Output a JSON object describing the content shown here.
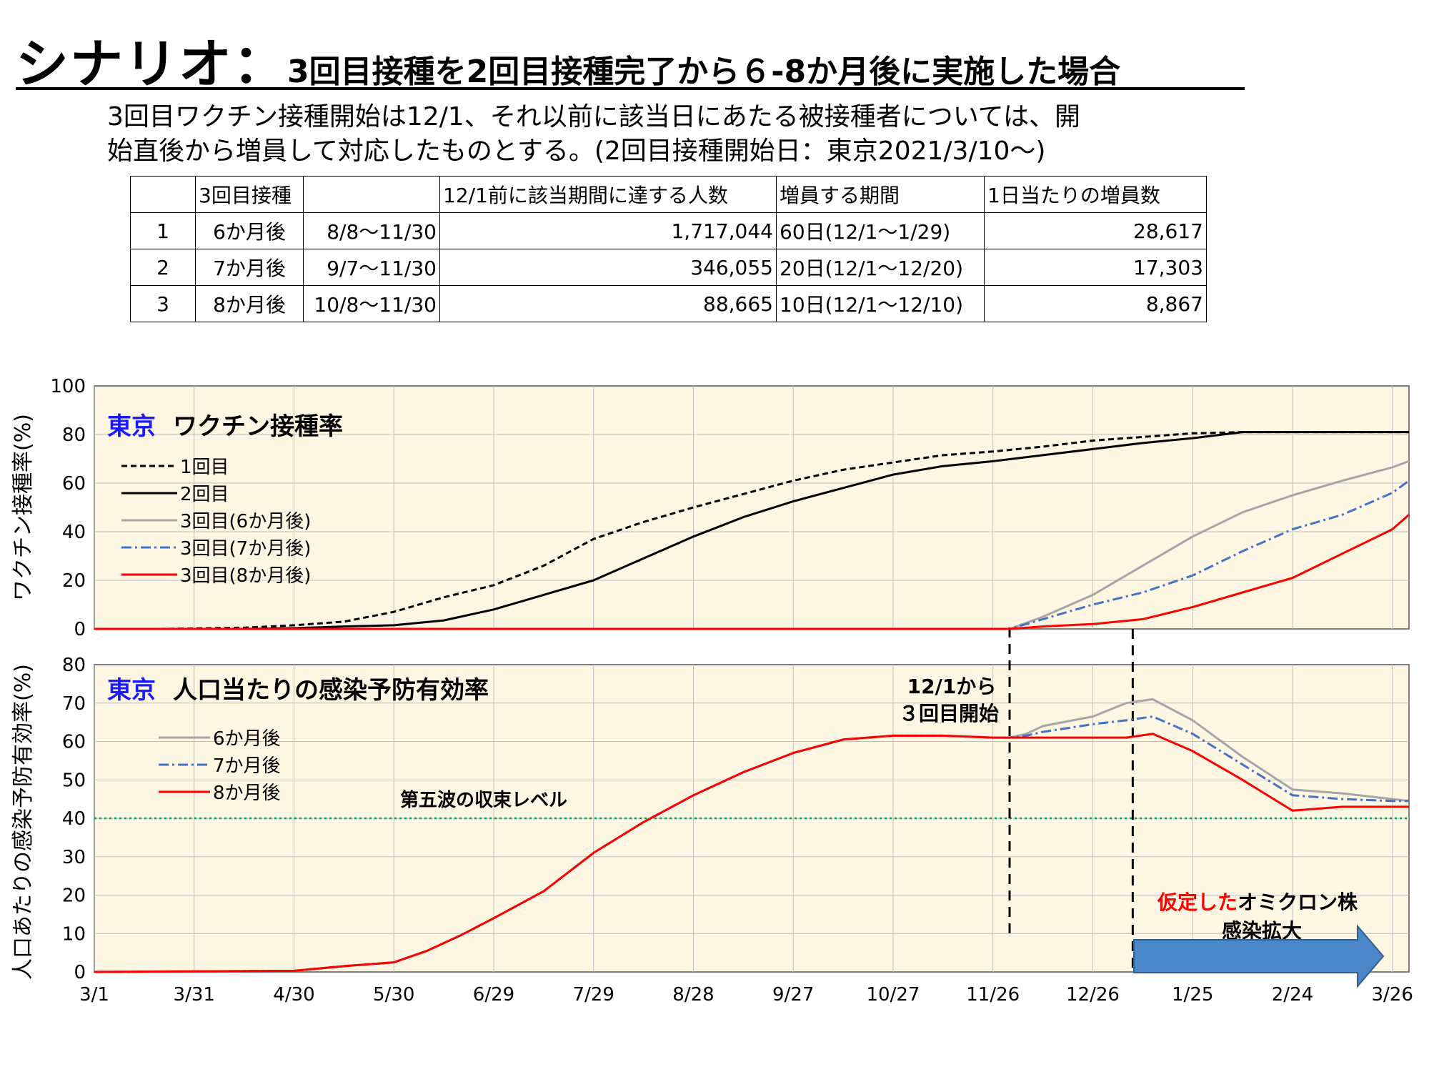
{
  "title": {
    "main": "シナリオ：",
    "sub": "3回目接種を2回目接種完了から６-8か月後に実施した場合"
  },
  "description": {
    "line1": "3回目ワクチン接種開始は12/1、それ以前に該当日にあたる被接種者については、開",
    "line2": "始直後から増員して対応したものとする。(2回目接種開始日：東京2021/3/10〜)"
  },
  "table": {
    "headers": [
      "",
      "3回目接種",
      "",
      "12/1前に該当期間に達する人数",
      "増員する期間",
      "1日当たりの増員数"
    ],
    "rows": [
      [
        "1",
        "6か月後",
        "8/8〜11/30",
        "1,717,044",
        "60日(12/1〜1/29)",
        "28,617"
      ],
      [
        "2",
        "7か月後",
        "9/7〜11/30",
        "346,055",
        "20日(12/1〜12/20)",
        "17,303"
      ],
      [
        "3",
        "8か月後",
        "10/8〜11/30",
        "88,665",
        "10日(12/1〜12/10)",
        "8,867"
      ]
    ]
  },
  "colors": {
    "panel_bg": "#fdf6e3",
    "black": "#000000",
    "gray": "#a6a6a6",
    "blue": "#4472c4",
    "red": "#ff0000",
    "green": "#00a050",
    "title_blue": "#1a1aff",
    "arrow": "#4a86c8"
  },
  "chart_data": [
    {
      "type": "line",
      "title_prefix": "東京",
      "title": "ワクチン接種率",
      "ylabel": "ワクチン接種率(%)",
      "ylim": [
        0,
        100
      ],
      "yticks": [
        0,
        20,
        40,
        60,
        80,
        100
      ],
      "legend": "top-left",
      "series": [
        {
          "name": "1回目",
          "color": "black",
          "dash": "dashed",
          "x": [
            0,
            20,
            45,
            60,
            75,
            90,
            105,
            120,
            135,
            150,
            165,
            180,
            195,
            210,
            225,
            240,
            255,
            270,
            285,
            300,
            330,
            345,
            360,
            395
          ],
          "y": [
            0,
            0,
            0.5,
            1.5,
            3,
            7,
            13,
            18,
            26,
            37,
            44,
            50,
            55.5,
            61,
            65.5,
            68.5,
            71.5,
            73,
            75,
            77.5,
            80.5,
            81,
            81,
            81
          ]
        },
        {
          "name": "2回目",
          "color": "black",
          "dash": "solid",
          "x": [
            0,
            45,
            60,
            75,
            90,
            105,
            120,
            135,
            150,
            165,
            180,
            195,
            210,
            225,
            240,
            255,
            270,
            285,
            300,
            315,
            330,
            345,
            395
          ],
          "y": [
            0,
            0,
            0.3,
            1,
            1.5,
            3.5,
            8,
            14,
            20,
            29,
            38,
            46,
            52.5,
            58,
            63.5,
            67,
            69,
            71.5,
            74,
            76.5,
            78.5,
            81,
            81
          ]
        },
        {
          "name": "3回目(6か月後)",
          "color": "gray",
          "dash": "solid",
          "x": [
            0,
            275,
            285,
            300,
            315,
            330,
            345,
            360,
            375,
            390,
            395
          ],
          "y": [
            0,
            0,
            5,
            14,
            26,
            38,
            48,
            55,
            61,
            66.5,
            69
          ]
        },
        {
          "name": "3回目(7か月後)",
          "color": "blue",
          "dash": "dashdot",
          "x": [
            0,
            275,
            285,
            300,
            315,
            330,
            345,
            360,
            375,
            390,
            395
          ],
          "y": [
            0,
            0,
            4,
            10,
            15,
            22,
            32,
            41,
            47,
            56,
            61
          ]
        },
        {
          "name": "3回目(8か月後)",
          "color": "red",
          "dash": "solid",
          "x": [
            0,
            275,
            285,
            300,
            315,
            330,
            345,
            360,
            375,
            390,
            395
          ],
          "y": [
            0,
            0,
            1,
            2,
            4,
            9,
            15,
            21,
            31,
            41,
            47
          ]
        }
      ]
    },
    {
      "type": "line",
      "title_prefix": "東京",
      "title": "人口当たりの感染予防有効率",
      "ylabel": "人口あたりの感染予防有効率(%)",
      "ylim": [
        0,
        80
      ],
      "yticks": [
        0,
        10,
        20,
        30,
        40,
        50,
        60,
        70,
        80
      ],
      "xlabels": [
        "3/1",
        "3/31",
        "4/30",
        "5/30",
        "6/29",
        "7/29",
        "8/28",
        "9/27",
        "10/27",
        "11/26",
        "12/26",
        "1/25",
        "2/24",
        "3/26"
      ],
      "xticks": [
        0,
        30,
        60,
        90,
        120,
        150,
        180,
        210,
        240,
        270,
        300,
        330,
        360,
        390
      ],
      "legend": "top-left",
      "series": [
        {
          "name": "6か月後",
          "color": "gray",
          "dash": "solid",
          "x": [
            0,
            60,
            75,
            90,
            100,
            110,
            120,
            135,
            150,
            165,
            180,
            195,
            210,
            225,
            240,
            255,
            270,
            275,
            280,
            285,
            300,
            310,
            318,
            330,
            345,
            360,
            375,
            390,
            395
          ],
          "y": [
            0,
            0.3,
            1.5,
            2.5,
            5.5,
            9.5,
            14,
            21,
            31,
            39,
            46,
            52,
            57,
            60.5,
            61.5,
            61.5,
            61,
            61,
            62,
            64,
            66.5,
            70,
            71,
            65.5,
            56,
            47.5,
            46.5,
            45,
            44.5
          ]
        },
        {
          "name": "7か月後",
          "color": "blue",
          "dash": "dashdot",
          "x": [
            0,
            60,
            75,
            90,
            100,
            110,
            120,
            135,
            150,
            165,
            180,
            195,
            210,
            225,
            240,
            255,
            270,
            275,
            280,
            285,
            300,
            310,
            318,
            330,
            345,
            360,
            375,
            390,
            395
          ],
          "y": [
            0,
            0.3,
            1.5,
            2.5,
            5.5,
            9.5,
            14,
            21,
            31,
            39,
            46,
            52,
            57,
            60.5,
            61.5,
            61.5,
            61,
            61,
            61.5,
            62.5,
            64.5,
            65.5,
            66.5,
            62,
            54,
            46,
            45,
            44.5,
            44.5
          ]
        },
        {
          "name": "8か月後",
          "color": "red",
          "dash": "solid",
          "x": [
            0,
            60,
            75,
            90,
            100,
            110,
            120,
            135,
            150,
            165,
            180,
            195,
            210,
            225,
            240,
            255,
            270,
            275,
            280,
            285,
            300,
            310,
            318,
            330,
            345,
            360,
            375,
            390,
            395
          ],
          "y": [
            0,
            0.3,
            1.5,
            2.5,
            5.5,
            9.5,
            14,
            21,
            31,
            39,
            46,
            52,
            57,
            60.5,
            61.5,
            61.5,
            61,
            61,
            61,
            61,
            61,
            61,
            62,
            57.5,
            50,
            42,
            43,
            43,
            43
          ]
        }
      ],
      "reference_line": {
        "y": 40,
        "label": "第五波の収束レベル",
        "color": "green"
      },
      "annotations": {
        "start_line_x": 275,
        "start_label_1": "12/1から",
        "start_label_2": "３回目開始",
        "omicron_line_x": 312,
        "omicron_red": "仮定した",
        "omicron_rest": "オミクロン株",
        "omicron_line2": "感染拡大"
      }
    }
  ]
}
